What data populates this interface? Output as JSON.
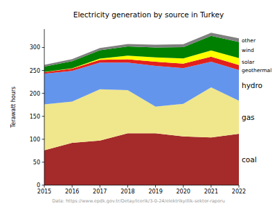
{
  "chart_data": {
    "type": "area",
    "title": "Electricity generation by source in Turkey",
    "y_label": "Terawatt hours",
    "annotations": [
      "Data: https://www.epdk.gov.tr/Detay/Icerik/3-0-24/elektrikyillik-sektor-raporu"
    ],
    "stacked": true,
    "x": [
      2015,
      2016,
      2017,
      2018,
      2019,
      2020,
      2021,
      2022
    ],
    "xlim": [
      2015,
      2022
    ],
    "xticks": [
      2015,
      2016,
      2017,
      2018,
      2019,
      2020,
      2021,
      2022
    ],
    "ylim": [
      0,
      340
    ],
    "yticks": [
      0,
      50,
      100,
      150,
      200,
      250,
      300
    ],
    "series": [
      {
        "name": "coal",
        "color": "#a52a2a",
        "values": [
          76,
          92,
          97,
          113,
          113,
          106,
          104,
          112
        ]
      },
      {
        "name": "gas",
        "color": "#f0e68c",
        "values": [
          100,
          90,
          112,
          94,
          58,
          71,
          109,
          72
        ]
      },
      {
        "name": "hydro",
        "color": "#6495ed",
        "values": [
          67,
          67,
          58,
          60,
          89,
          78,
          56,
          67
        ]
      },
      {
        "name": "geothermal",
        "color": "#e3211c",
        "values": [
          3.4,
          4.8,
          6,
          7.4,
          9,
          10,
          10.8,
          10.9
        ]
      },
      {
        "name": "solar",
        "color": "#ffff00",
        "values": [
          0.2,
          1,
          2.9,
          7.8,
          9.3,
          11,
          13.9,
          15
        ]
      },
      {
        "name": "wind",
        "color": "#008000",
        "values": [
          11.7,
          15.5,
          17.9,
          19.9,
          21.7,
          24.8,
          31.4,
          35
        ]
      },
      {
        "name": "other",
        "color": "#808080",
        "values": [
          4,
          4.5,
          5,
          5.5,
          6,
          6.5,
          7,
          8
        ]
      }
    ]
  }
}
